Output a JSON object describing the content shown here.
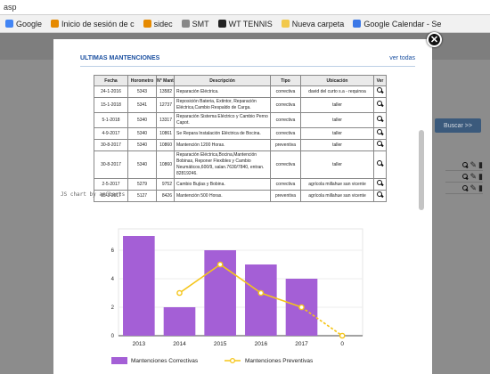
{
  "browser": {
    "url": "asp",
    "bookmarks": [
      {
        "label": "Google",
        "color": "#4285f4"
      },
      {
        "label": "Inicio de sesión de c",
        "color": "#e68a00"
      },
      {
        "label": "sidec",
        "color": "#e68a00"
      },
      {
        "label": "SMT",
        "color": "#888888"
      },
      {
        "label": "WT TENNIS",
        "color": "#222222"
      },
      {
        "label": "Nueva carpeta",
        "color": "#f2c94c"
      },
      {
        "label": "Google Calendar - Se",
        "color": "#3b78e7"
      }
    ]
  },
  "background": {
    "search_button": "Buscar >>"
  },
  "modal": {
    "title": "ULTIMAS MANTENCIONES",
    "view_all": "ver todas",
    "columns": [
      "Fecha",
      "Horometro",
      "N° Mant",
      "Descripción",
      "Tipo",
      "Ubicación",
      "Ver"
    ],
    "rows": [
      {
        "fecha": "24-1-2016",
        "horometro": "5343",
        "mant": "13582",
        "desc": "Reparación Eléctrica.",
        "tipo": "correctiva",
        "ubic": "david del curto s.a - requinoa"
      },
      {
        "fecha": "15-1-2018",
        "horometro": "5341",
        "mant": "12737",
        "desc": "Reposición Bateria, Extintor, Reparación Eléctrica,Cambio Respaldo de Carga.",
        "tipo": "correctiva",
        "ubic": "taller"
      },
      {
        "fecha": "5-1-2018",
        "horometro": "5340",
        "mant": "13317",
        "desc": "Reparación Sistema Eléctrico y Cambio Perno Capot.",
        "tipo": "correctiva",
        "ubic": "taller"
      },
      {
        "fecha": "4-9-2017",
        "horometro": "5340",
        "mant": "10861",
        "desc": "Se Repara Instalación Eléctrica de Bocina.",
        "tipo": "correctiva",
        "ubic": "taller"
      },
      {
        "fecha": "30-8-2017",
        "horometro": "5340",
        "mant": "10860",
        "desc": "Mantención 1200 Horas.",
        "tipo": "preventiva",
        "ubic": "taller"
      },
      {
        "fecha": "30-8-2017",
        "horometro": "5340",
        "mant": "10860",
        "desc": "Reparación Eléctrica,Bocina,Mantención Bobinas, Reponer Flexibles y Cambio Neumáticos,600/9, salan.7630/7840, entran. 82819246.",
        "tipo": "correctiva",
        "ubic": "taller"
      },
      {
        "fecha": "2-5-2017",
        "horometro": "5279",
        "mant": "9752",
        "desc": "Cambio Bujías y Bobina.",
        "tipo": "correctiva",
        "ubic": "agrícola millahue san vicente"
      },
      {
        "fecha": "15-3-2017",
        "horometro": "5127",
        "mant": "8426",
        "desc": "Mantención 500 Horas.",
        "tipo": "preventiva",
        "ubic": "agrícola millahue san vicente"
      }
    ]
  },
  "chart_credit": "JS chart by amCharts",
  "chart_data": {
    "type": "bar",
    "categories": [
      "2013",
      "2014",
      "2015",
      "2016",
      "2017",
      "0"
    ],
    "series": [
      {
        "name": "Mantenciones Correctivas",
        "type": "bar",
        "color": "#a45fd6",
        "values": [
          7,
          2,
          6,
          5,
          4,
          null
        ]
      },
      {
        "name": "Mantenciones Preventivas",
        "type": "line",
        "color": "#f5c518",
        "values": [
          null,
          3,
          5,
          3,
          2,
          0
        ]
      }
    ],
    "yticks": [
      0,
      2,
      4,
      6
    ],
    "ylim": [
      0,
      7.5
    ],
    "legend": "bottom"
  }
}
